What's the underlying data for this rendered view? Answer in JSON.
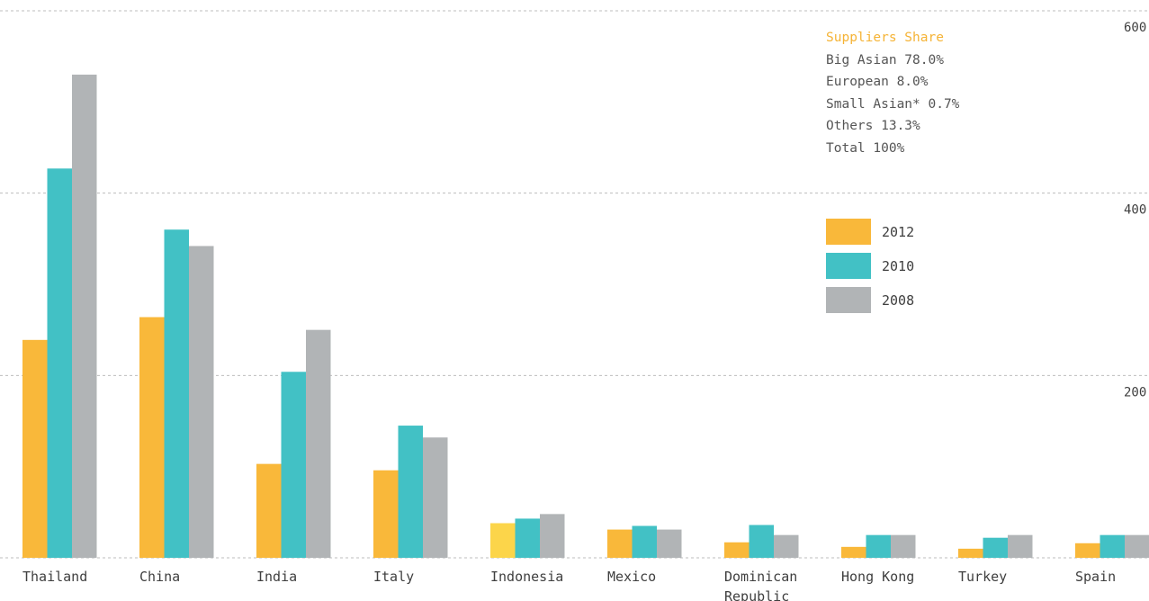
{
  "chart_data": {
    "type": "bar",
    "categories": [
      "Thailand",
      "China",
      "India",
      "Italy",
      "Indonesia",
      "Mexico",
      "Dominican Republic",
      "Hong Kong",
      "Turkey",
      "Spain"
    ],
    "category_labels": [
      [
        "Thailand"
      ],
      [
        "China"
      ],
      [
        "India"
      ],
      [
        "Italy"
      ],
      [
        "Indonesia"
      ],
      [
        "Mexico"
      ],
      [
        "Dominican",
        "Republic"
      ],
      [
        "Hong Kong"
      ],
      [
        "Turkey"
      ],
      [
        "Spain"
      ]
    ],
    "series": [
      {
        "name": "2012",
        "color": "#f9b83a",
        "values": [
          239,
          264,
          103,
          96,
          38,
          31,
          17,
          12,
          10,
          16
        ]
      },
      {
        "name": "2010",
        "color": "#42c1c5",
        "values": [
          427,
          360,
          204,
          145,
          43,
          35,
          36,
          25,
          22,
          25
        ]
      },
      {
        "name": "2008",
        "color": "#b1b4b6",
        "values": [
          530,
          342,
          250,
          132,
          48,
          31,
          25,
          25,
          25,
          25
        ]
      }
    ],
    "highlight_colors": [
      {
        "category": "Indonesia",
        "series": "2012",
        "color": "#fcd54a"
      }
    ],
    "y_ticks": [
      200,
      400,
      600
    ],
    "ylim": [
      0,
      600
    ],
    "grid": true,
    "legend_position": "top-right"
  },
  "info": {
    "title": "Suppliers Share",
    "lines": [
      "Big Asian 78.0%",
      "European 8.0%",
      "Small Asian* 0.7%",
      "Others 13.3%",
      "Total 100%"
    ]
  }
}
